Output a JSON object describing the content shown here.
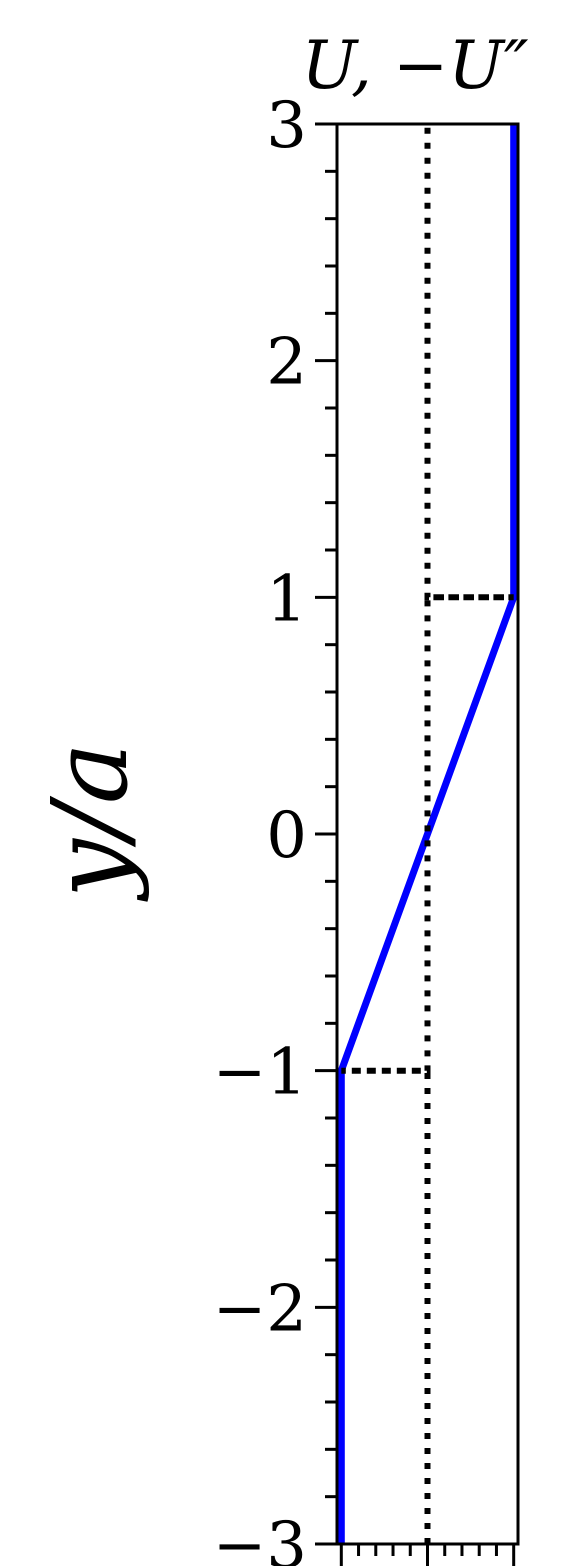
{
  "chart_data": {
    "type": "line",
    "title": "U, −U″",
    "ylabel": "y/a",
    "xlabel": "",
    "ylim": [
      -3,
      3
    ],
    "xlim": [
      -1.05,
      1.05
    ],
    "yticks": [
      -3,
      -2,
      -1,
      0,
      1,
      2,
      3
    ],
    "ytick_labels": [
      "−3",
      "−2",
      "−1",
      "0",
      "1",
      "2",
      "3"
    ],
    "series": [
      {
        "style": "solid",
        "color": "#0000ff",
        "x": [
          -1,
          -1,
          1,
          1
        ],
        "y": [
          -3,
          -1,
          1,
          3
        ]
      },
      {
        "style": "dotted",
        "color": "#000000",
        "x": [
          0,
          0,
          -1,
          0,
          0,
          1,
          0,
          0
        ],
        "y": [
          -3,
          -1,
          -1,
          -1,
          1,
          1,
          1,
          3
        ]
      }
    ],
    "grid": false,
    "legend": "none"
  }
}
